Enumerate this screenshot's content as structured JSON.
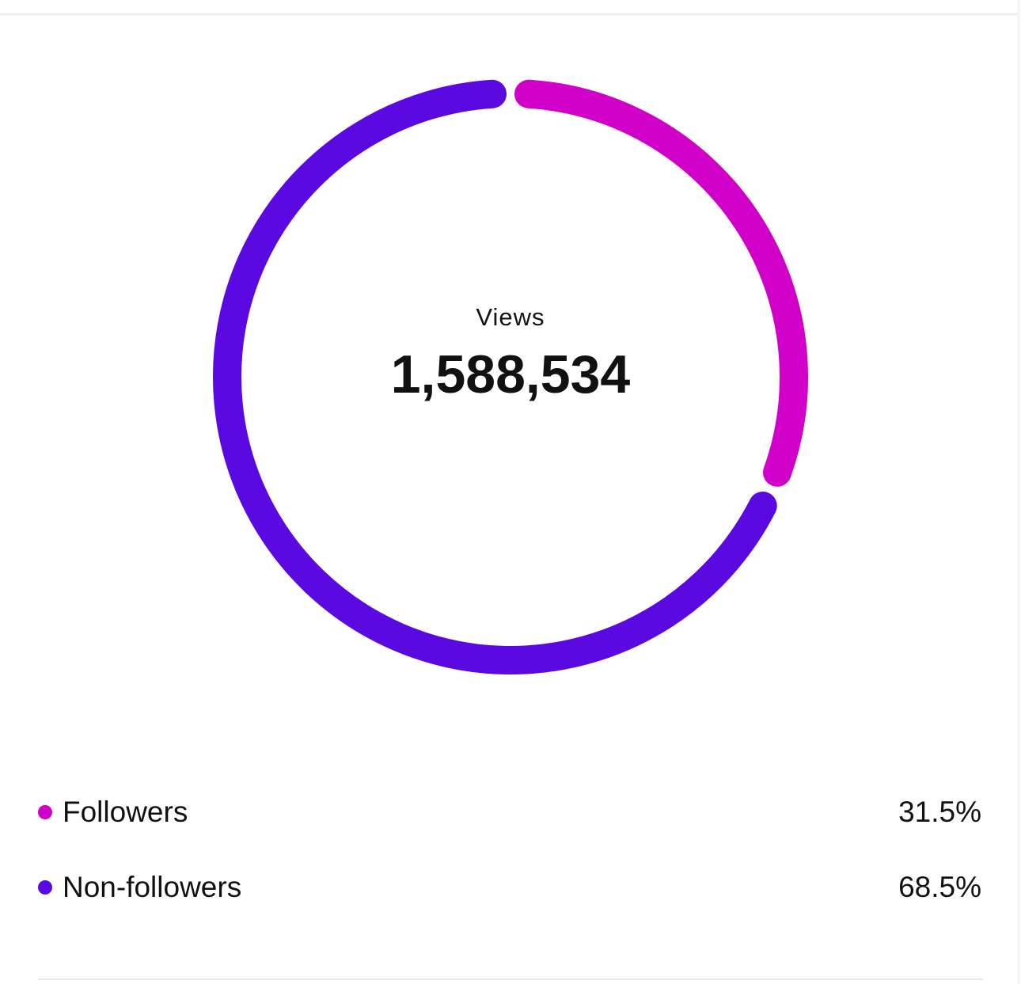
{
  "chart_data": {
    "type": "donut",
    "center_label": "Views",
    "center_value": "1,588,534",
    "categories": [
      "Followers",
      "Non-followers"
    ],
    "values": [
      31.5,
      68.5
    ],
    "value_labels": [
      "31.5%",
      "68.5%"
    ],
    "colors": [
      "#d100c8",
      "#5a0ae0"
    ]
  }
}
